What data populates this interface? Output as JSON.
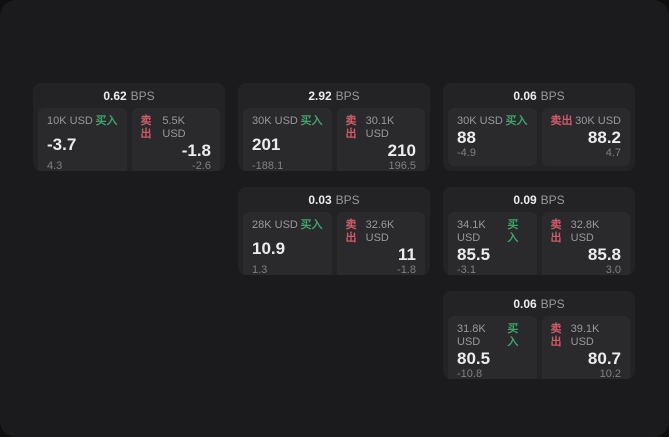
{
  "colors": {
    "page_bg": "#0f0f10",
    "panel_bg": "#1b1b1d",
    "card_bg": "#232325",
    "tile_bg": "#2a2a2d",
    "buy_green": "#42a06a",
    "sell_red": "#d05a6a"
  },
  "cards": [
    {
      "bps_value": "0.62",
      "bps_unit": "BPS",
      "buy": {
        "amount": "10K USD",
        "side_label": "买入",
        "price": "-3.7",
        "delta": "4.3"
      },
      "sell": {
        "amount": "5.5K USD",
        "side_label": "卖出",
        "price": "-1.8",
        "delta": "-2.6"
      },
      "grid": {
        "row": 1,
        "col": 1
      }
    },
    {
      "bps_value": "2.92",
      "bps_unit": "BPS",
      "buy": {
        "amount": "30K USD",
        "side_label": "买入",
        "price": "201",
        "delta": "-188.1"
      },
      "sell": {
        "amount": "30.1K USD",
        "side_label": "卖出",
        "price": "210",
        "delta": "196.5"
      },
      "grid": {
        "row": 1,
        "col": 2
      }
    },
    {
      "bps_value": "0.06",
      "bps_unit": "BPS",
      "buy": {
        "amount": "30K USD",
        "side_label": "买入",
        "price": "88",
        "delta": "-4.9"
      },
      "sell": {
        "amount": "30K USD",
        "side_label": "卖出",
        "price": "88.2",
        "delta": "4.7"
      },
      "grid": {
        "row": 1,
        "col": 3
      }
    },
    {
      "bps_value": "0.03",
      "bps_unit": "BPS",
      "buy": {
        "amount": "28K USD",
        "side_label": "买入",
        "price": "10.9",
        "delta": "1.3"
      },
      "sell": {
        "amount": "32.6K USD",
        "side_label": "卖出",
        "price": "11",
        "delta": "-1.8"
      },
      "grid": {
        "row": 2,
        "col": 2
      }
    },
    {
      "bps_value": "0.09",
      "bps_unit": "BPS",
      "buy": {
        "amount": "34.1K USD",
        "side_label": "买入",
        "price": "85.5",
        "delta": "-3.1"
      },
      "sell": {
        "amount": "32.8K USD",
        "side_label": "卖出",
        "price": "85.8",
        "delta": "3.0"
      },
      "grid": {
        "row": 2,
        "col": 3
      }
    },
    {
      "bps_value": "0.06",
      "bps_unit": "BPS",
      "buy": {
        "amount": "31.8K USD",
        "side_label": "买入",
        "price": "80.5",
        "delta": "-10.8"
      },
      "sell": {
        "amount": "39.1K USD",
        "side_label": "卖出",
        "price": "80.7",
        "delta": "10.2"
      },
      "grid": {
        "row": 3,
        "col": 3
      }
    }
  ]
}
